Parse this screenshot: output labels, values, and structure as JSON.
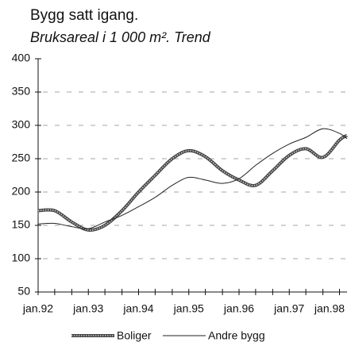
{
  "chart_data": {
    "type": "line",
    "title": "Bygg satt igang.",
    "subtitle": "Bruksareal i 1 000 m². Trend",
    "x": [
      1992,
      1992.33,
      1992.67,
      1993,
      1993.33,
      1993.67,
      1994,
      1994.33,
      1994.67,
      1995,
      1995.33,
      1995.67,
      1996,
      1996.33,
      1996.67,
      1997,
      1997.33,
      1997.67,
      1998,
      1998.15
    ],
    "series": [
      {
        "name": "Boliger",
        "color": "#444444",
        "values": [
          172,
          172,
          155,
          143,
          150,
          172,
          200,
          225,
          250,
          262,
          253,
          232,
          218,
          210,
          232,
          255,
          265,
          252,
          278,
          285
        ]
      },
      {
        "name": "Andre bygg",
        "color": "#222222",
        "values": [
          152,
          153,
          148,
          145,
          155,
          165,
          178,
          192,
          210,
          222,
          218,
          213,
          220,
          240,
          258,
          272,
          282,
          295,
          288,
          280
        ]
      }
    ],
    "xlim": [
      1992,
      1998.15
    ],
    "xticks": [
      {
        "value": 1992,
        "label": "jan.92"
      },
      {
        "value": 1993,
        "label": "jan.93"
      },
      {
        "value": 1994,
        "label": "jan.94"
      },
      {
        "value": 1995,
        "label": "jan.95"
      },
      {
        "value": 1996,
        "label": "jan.96"
      },
      {
        "value": 1997,
        "label": "jan.97"
      },
      {
        "value": 1998,
        "label": "jan.98"
      }
    ],
    "xticks_minor": [
      1992.33,
      1992.67,
      1993.33,
      1993.67,
      1994.33,
      1994.67,
      1995.33,
      1995.67,
      1996.33,
      1996.67,
      1997.33,
      1997.67
    ],
    "ylim": [
      50,
      400
    ],
    "yticks": [
      50,
      100,
      150,
      200,
      250,
      300,
      350,
      400
    ],
    "grid": true
  }
}
